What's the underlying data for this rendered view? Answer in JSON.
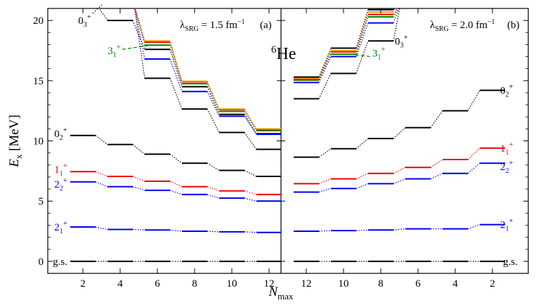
{
  "chart_data": {
    "type": "line",
    "title": "6He",
    "xlabel": "N_max",
    "ylabel": "E_x [MeV]",
    "ylim": [
      -1,
      21
    ],
    "yticks": [
      0,
      5,
      10,
      15,
      20
    ],
    "ytick_labels": [
      "0",
      "5",
      "10",
      "15",
      "20"
    ],
    "axis_label_parts": {
      "ylabel_main": "E",
      "ylabel_sub": "x",
      "ylabel_unit": " [MeV]",
      "xlabel_main": "N",
      "xlabel_sub": "max"
    },
    "colors": {
      "black": "#000000",
      "blue": "#0000ee",
      "red": "#ee0000",
      "green": "#008800",
      "orange": "#ff9900",
      "purple": "#9933cc",
      "cyan": "#00bbbb"
    },
    "panels": [
      {
        "id": "a",
        "panel_label": "(a)",
        "lambda_label": "λ",
        "lambda_sub": "SRG",
        "lambda_value": " = 1.5 fm",
        "lambda_sup": "−1",
        "categories": [
          "2",
          "4",
          "6",
          "8",
          "10",
          "12"
        ],
        "series": [
          {
            "name": "g.s.",
            "color": "#000000",
            "values": [
              0,
              0,
              0,
              0,
              0,
              0
            ]
          },
          {
            "name": "2_1+",
            "color": "#0000ee",
            "values": [
              2.85,
              2.65,
              2.6,
              2.5,
              2.45,
              2.4
            ]
          },
          {
            "name": "2_2+",
            "color": "#0000ee",
            "values": [
              6.6,
              6.2,
              5.9,
              5.55,
              5.25,
              5.0
            ]
          },
          {
            "name": "1_1+",
            "color": "#ee0000",
            "values": [
              7.45,
              7.05,
              6.65,
              6.2,
              5.85,
              5.55
            ]
          },
          {
            "name": "0_2+",
            "color": "#000000",
            "values": [
              10.45,
              9.7,
              8.9,
              8.15,
              7.55,
              7.05
            ]
          },
          {
            "name": "0_3+",
            "color": "#000000",
            "values": [
              null,
              20.0,
              17.6,
              14.5,
              12.2,
              10.6
            ]
          },
          {
            "name": "3_1+",
            "color": "#008800",
            "values": [
              null,
              null,
              17.95,
              14.75,
              12.45,
              10.85
            ]
          },
          {
            "name": "3_1+ (other)",
            "color": "#000000",
            "values": [
              null,
              null,
              15.2,
              12.65,
              10.7,
              9.3
            ]
          },
          {
            "name": "blue-high",
            "color": "#0000ee",
            "values": [
              null,
              null,
              16.8,
              14.1,
              12.05,
              10.55
            ]
          },
          {
            "name": "red-high",
            "color": "#ee0000",
            "values": [
              null,
              null,
              18.2,
              14.9,
              12.6,
              10.95
            ]
          },
          {
            "name": "orange-high",
            "color": "#ff9900",
            "values": [
              null,
              null,
              18.3,
              14.95,
              12.65,
              11.0
            ]
          }
        ],
        "state_labels": [
          {
            "text": "g.s.",
            "base": "g.s.",
            "sub": "",
            "sup": "",
            "color": "#000000",
            "y": 0
          },
          {
            "text": "2_1+",
            "base": "2",
            "sub": "1",
            "sup": "+",
            "color": "#0000ee",
            "y": 2.85
          },
          {
            "text": "2_2+",
            "base": "2",
            "sub": "2",
            "sup": "+",
            "color": "#0000ee",
            "y": 6.6
          },
          {
            "text": "1_1+",
            "base": "1",
            "sub": "1",
            "sup": "+",
            "color": "#ee0000",
            "y": 7.45
          },
          {
            "text": "0_2+",
            "base": "0",
            "sub": "2",
            "sup": "+",
            "color": "#000000",
            "y": 10.45
          },
          {
            "text": "0_3+",
            "base": "0",
            "sub": "3",
            "sup": "+",
            "color": "#000000",
            "y": 20.0
          },
          {
            "text": "3_1+",
            "base": "3",
            "sub": "1",
            "sup": "+",
            "color": "#008800",
            "y": 17.95
          }
        ]
      },
      {
        "id": "b",
        "panel_label": "(b)",
        "lambda_label": "λ",
        "lambda_sub": "SRG",
        "lambda_value": " = 2.0 fm",
        "lambda_sup": "−1",
        "categories": [
          "12",
          "10",
          "8",
          "6",
          "4",
          "2"
        ],
        "series": [
          {
            "name": "g.s.",
            "color": "#000000",
            "values": [
              0,
              0,
              0,
              0,
              0,
              0
            ]
          },
          {
            "name": "2_1+",
            "color": "#0000ee",
            "values": [
              2.5,
              2.55,
              2.6,
              2.7,
              2.7,
              3.05
            ]
          },
          {
            "name": "2_2+",
            "color": "#0000ee",
            "values": [
              5.75,
              6.05,
              6.45,
              6.85,
              7.3,
              8.15
            ]
          },
          {
            "name": "1_1+",
            "color": "#ee0000",
            "values": [
              6.45,
              6.85,
              7.3,
              7.8,
              8.45,
              9.4
            ]
          },
          {
            "name": "0_2+",
            "color": "#000000",
            "values": [
              8.65,
              9.35,
              10.2,
              11.1,
              12.5,
              14.2
            ]
          },
          {
            "name": "0_3+",
            "color": "#000000",
            "values": [
              13.5,
              15.6,
              18.3,
              null,
              null,
              null
            ]
          },
          {
            "name": "3_1+",
            "color": "#008800",
            "values": [
              15.05,
              17.2,
              20.3,
              null,
              null,
              null
            ]
          },
          {
            "name": "blue-high",
            "color": "#0000ee",
            "values": [
              14.85,
              17.0,
              19.8,
              null,
              null,
              null
            ]
          },
          {
            "name": "red-high",
            "color": "#ee0000",
            "values": [
              15.1,
              17.4,
              20.5,
              null,
              null,
              null
            ]
          },
          {
            "name": "orange-high",
            "color": "#ff9900",
            "values": [
              15.2,
              17.5,
              20.7,
              null,
              null,
              null
            ]
          },
          {
            "name": "black-high",
            "color": "#000000",
            "values": [
              15.3,
              17.7,
              20.9,
              null,
              null,
              null
            ]
          }
        ],
        "state_labels": [
          {
            "text": "g.s.",
            "base": "g.s.",
            "sub": "",
            "sup": "",
            "color": "#000000",
            "y": 0
          },
          {
            "text": "2_1+",
            "base": "2",
            "sub": "1",
            "sup": "+",
            "color": "#0000ee",
            "y": 3.05
          },
          {
            "text": "2_2+",
            "base": "2",
            "sub": "2",
            "sup": "+",
            "color": "#0000ee",
            "y": 8.15
          },
          {
            "text": "1_1+",
            "base": "1",
            "sub": "1",
            "sup": "+",
            "color": "#ee0000",
            "y": 9.4
          },
          {
            "text": "0_2+",
            "base": "0",
            "sub": "2",
            "sup": "+",
            "color": "#000000",
            "y": 14.2
          },
          {
            "text": "0_3+",
            "base": "0",
            "sub": "3",
            "sup": "+",
            "color": "#000000",
            "y": 18.3
          },
          {
            "text": "3_1+",
            "base": "3",
            "sub": "1",
            "sup": "+",
            "color": "#008800",
            "y": 17.2
          }
        ]
      }
    ],
    "center_title": {
      "sup": "6",
      "base": "He"
    }
  }
}
